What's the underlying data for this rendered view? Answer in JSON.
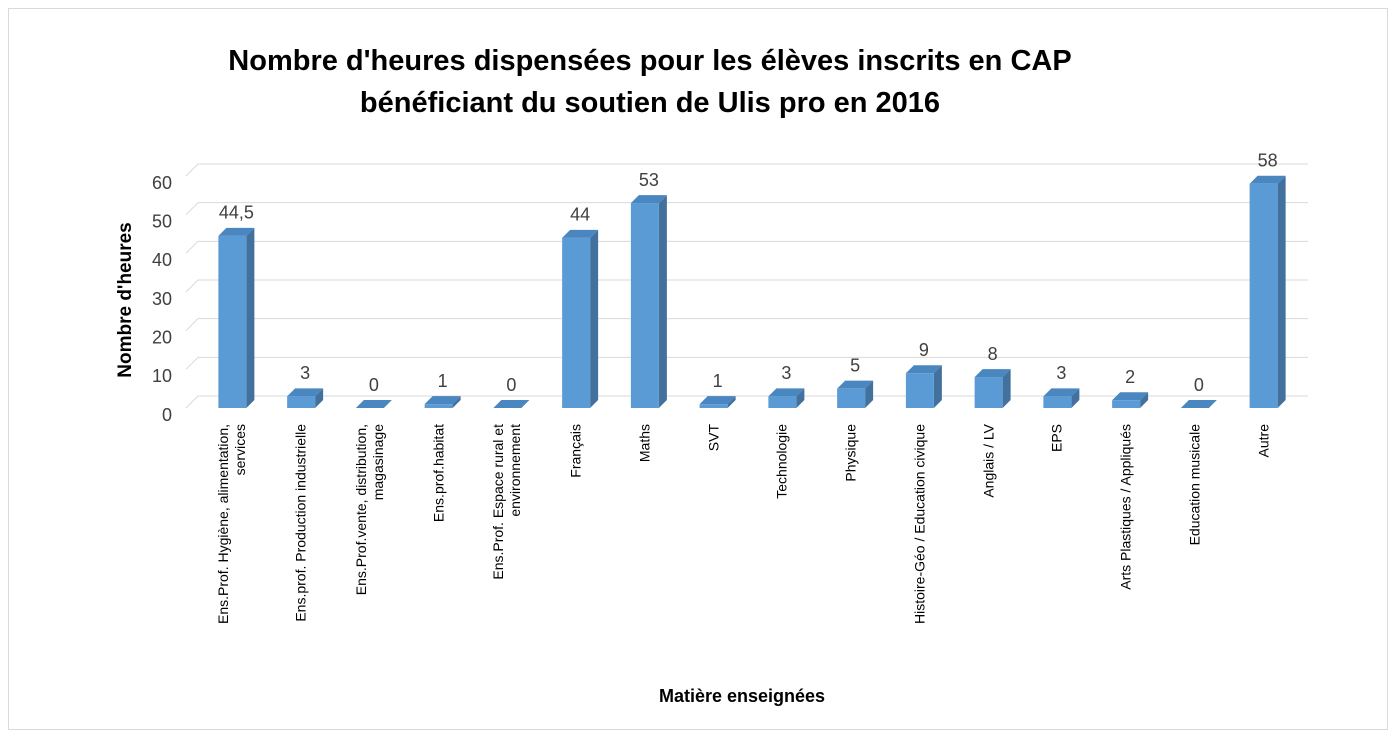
{
  "chart_data": {
    "type": "bar",
    "title": "Nombre d'heures dispensées pour les élèves inscrits en CAP bénéficiant du soutien de Ulis pro en 2016",
    "x_label": "Matière enseignées",
    "y_label": "Nombre d'heures",
    "categories": [
      "Ens.Prof. Hygiène, alimentation, services",
      "Ens.prof. Production industrielle",
      "Ens.Prof.vente, distribution, magasinage",
      "Ens.prof.habitat",
      "Ens.Prof. Espace rural et environnement",
      "Français",
      "Maths",
      "SVT",
      "Technologie",
      "Physique",
      "Histoire-Géo / Education civique",
      "Anglais / LV",
      "EPS",
      "Arts Plastiques / Appliqués",
      "Education musicale",
      "Autre"
    ],
    "values": [
      44.5,
      3,
      0,
      1,
      0,
      44,
      53,
      1,
      3,
      5,
      9,
      8,
      3,
      2,
      0,
      58
    ],
    "value_labels": [
      "44,5",
      "3",
      "0",
      "1",
      "0",
      "44",
      "53",
      "1",
      "3",
      "5",
      "9",
      "8",
      "3",
      "2",
      "0",
      "58"
    ],
    "color": "#5b9bd5",
    "ylim": [
      0,
      60
    ],
    "yticks": [
      0,
      10,
      20,
      30,
      40,
      50,
      60
    ],
    "grid": true
  }
}
